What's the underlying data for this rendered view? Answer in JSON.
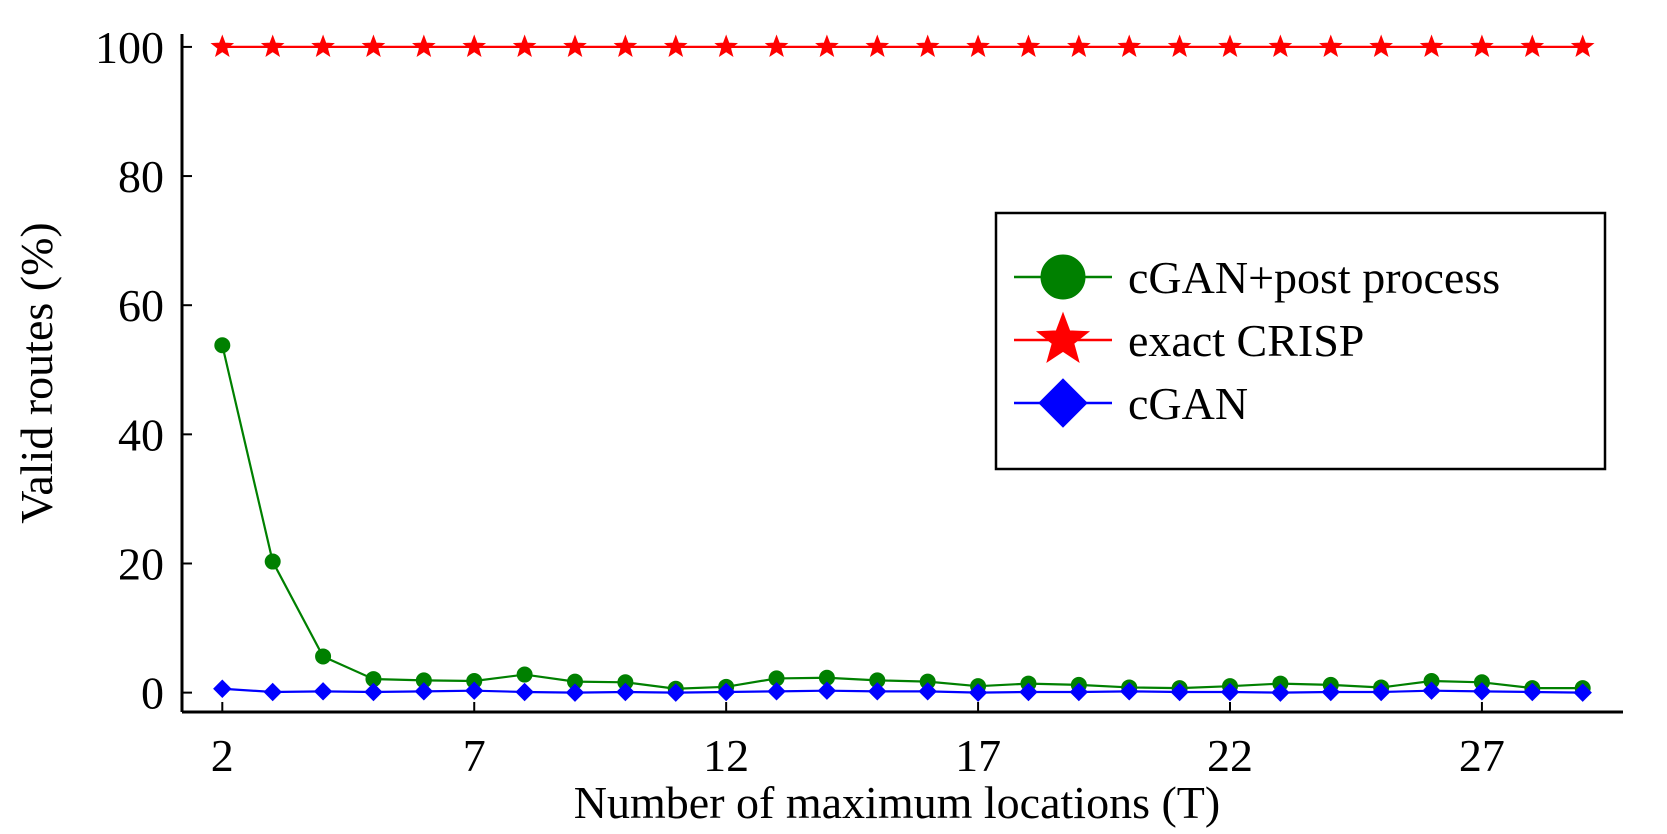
{
  "chart_data": {
    "type": "line",
    "xlabel": "Number of maximum locations (T)",
    "ylabel": "Valid routes (%)",
    "xlim": [
      1.2,
      29.8
    ],
    "ylim": [
      -3,
      102
    ],
    "xticks": [
      2,
      7,
      12,
      17,
      22,
      27
    ],
    "yticks": [
      0,
      20,
      40,
      60,
      80,
      100
    ],
    "grid": false,
    "legend_position": "right",
    "x": [
      2,
      3,
      4,
      5,
      6,
      7,
      8,
      9,
      10,
      11,
      12,
      13,
      14,
      15,
      16,
      17,
      18,
      19,
      20,
      21,
      22,
      23,
      24,
      25,
      26,
      27,
      28,
      29
    ],
    "series": [
      {
        "name": "cGAN+post process",
        "color": "#008000",
        "marker": "circle",
        "values": [
          53.8,
          20.3,
          5.6,
          2.1,
          1.9,
          1.8,
          2.8,
          1.7,
          1.6,
          0.6,
          0.9,
          2.2,
          2.3,
          1.9,
          1.7,
          1.0,
          1.4,
          1.2,
          0.8,
          0.7,
          1.0,
          1.4,
          1.2,
          0.8,
          1.8,
          1.6,
          0.7,
          0.7
        ]
      },
      {
        "name": "exact CRISP",
        "color": "#ff0000",
        "marker": "star",
        "values": [
          100,
          100,
          100,
          100,
          100,
          100,
          100,
          100,
          100,
          100,
          100,
          100,
          100,
          100,
          100,
          100,
          100,
          100,
          100,
          100,
          100,
          100,
          100,
          100,
          100,
          100,
          100,
          100
        ]
      },
      {
        "name": "cGAN",
        "color": "#0000ff",
        "marker": "diamond",
        "values": [
          0.6,
          0.1,
          0.2,
          0.1,
          0.2,
          0.3,
          0.1,
          0.0,
          0.1,
          0.0,
          0.1,
          0.2,
          0.3,
          0.2,
          0.2,
          0.0,
          0.1,
          0.1,
          0.2,
          0.1,
          0.1,
          0.0,
          0.1,
          0.1,
          0.3,
          0.2,
          0.1,
          0.0
        ]
      }
    ]
  }
}
